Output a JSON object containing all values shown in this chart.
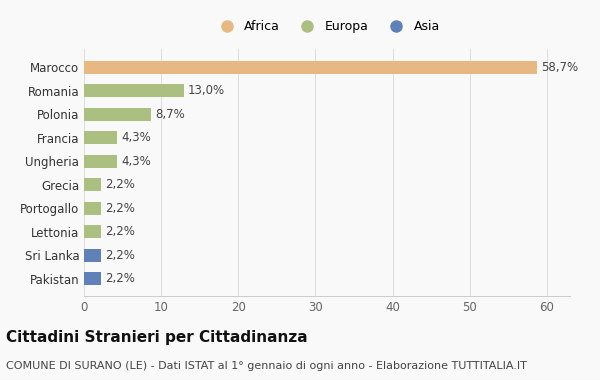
{
  "categories": [
    "Pakistan",
    "Sri Lanka",
    "Lettonia",
    "Portogallo",
    "Grecia",
    "Ungheria",
    "Francia",
    "Polonia",
    "Romania",
    "Marocco"
  ],
  "values": [
    2.2,
    2.2,
    2.2,
    2.2,
    2.2,
    4.3,
    4.3,
    8.7,
    13.0,
    58.7
  ],
  "labels": [
    "2,2%",
    "2,2%",
    "2,2%",
    "2,2%",
    "2,2%",
    "4,3%",
    "4,3%",
    "8,7%",
    "13,0%",
    "58,7%"
  ],
  "colors": [
    "#6080b8",
    "#6080b8",
    "#aabf80",
    "#aabf80",
    "#aabf80",
    "#aabf80",
    "#aabf80",
    "#aabf80",
    "#aabf80",
    "#e8b882"
  ],
  "legend": [
    {
      "label": "Africa",
      "color": "#e8b882"
    },
    {
      "label": "Europa",
      "color": "#aabf80"
    },
    {
      "label": "Asia",
      "color": "#6080b8"
    }
  ],
  "title": "Cittadini Stranieri per Cittadinanza",
  "subtitle": "COMUNE DI SURANO (LE) - Dati ISTAT al 1° gennaio di ogni anno - Elaborazione TUTTITALIA.IT",
  "xlim": [
    0,
    63
  ],
  "xticks": [
    0,
    10,
    20,
    30,
    40,
    50,
    60
  ],
  "background_color": "#f9f9f9",
  "title_fontsize": 11,
  "subtitle_fontsize": 8,
  "label_fontsize": 8.5,
  "ytick_fontsize": 8.5,
  "xtick_fontsize": 8.5
}
